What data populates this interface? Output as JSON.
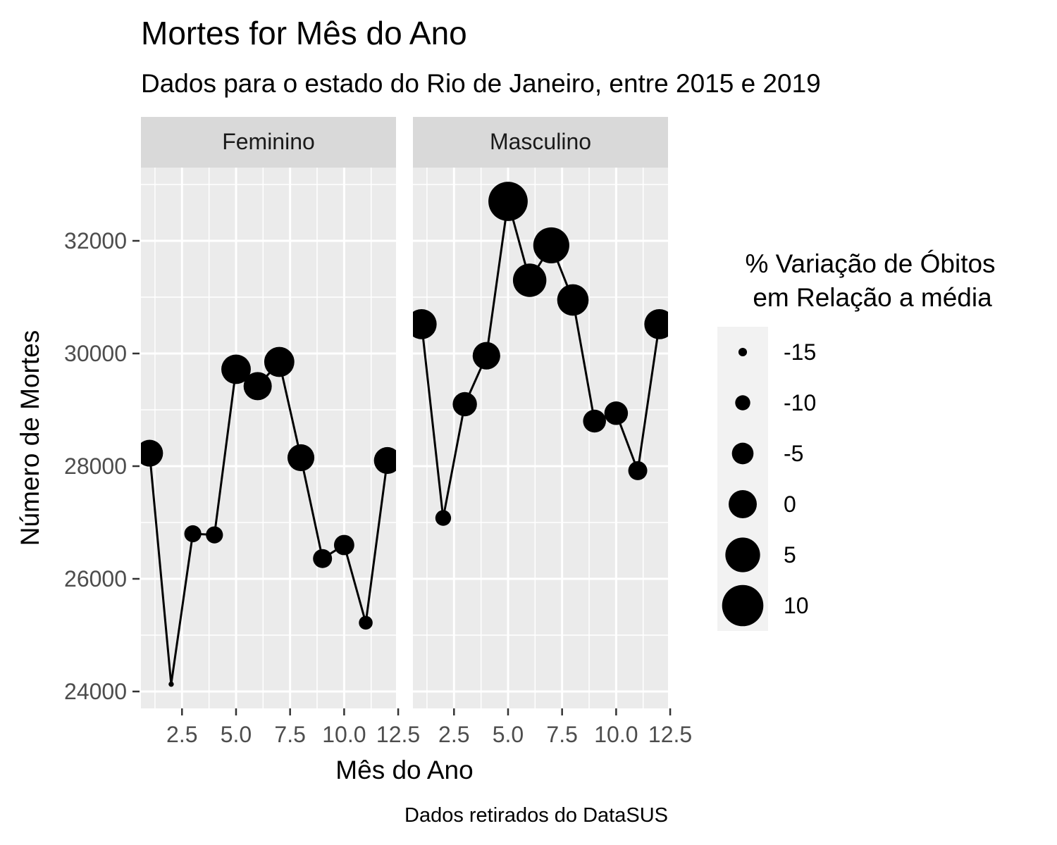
{
  "chart_data": {
    "type": "line",
    "title": "Mortes for Mês do Ano",
    "subtitle": "Dados para o estado do Rio de Janeiro, entre 2015 e 2019",
    "caption": "Dados retirados do DataSUS",
    "xlabel": "Mês do Ano",
    "ylabel": "Número de Mortes",
    "xlim": [
      0.6,
      12.4
    ],
    "ylim": [
      23700,
      33300
    ],
    "x_ticks": [
      2.5,
      5.0,
      7.5,
      10.0,
      12.5
    ],
    "x_tick_labels": [
      "2.5",
      "5.0",
      "7.5",
      "10.0",
      "12.5"
    ],
    "y_ticks": [
      24000,
      26000,
      28000,
      30000,
      32000
    ],
    "y_tick_labels": [
      "24000",
      "26000",
      "28000",
      "30000",
      "32000"
    ],
    "grid": true,
    "point_color": "#000000",
    "panel_background": "#ebebeb",
    "strip_background": "#d9d9d9",
    "facets": [
      {
        "label": "Feminino",
        "x": [
          1,
          2,
          3,
          4,
          5,
          6,
          7,
          8,
          9,
          10,
          11,
          12
        ],
        "y": [
          28230,
          24130,
          26800,
          26780,
          29720,
          29420,
          29850,
          28150,
          26360,
          26600,
          25220,
          28100
        ],
        "size": [
          -1,
          -17.5,
          -8.5,
          -8.5,
          1,
          0,
          1.5,
          -1,
          -7,
          -6,
          -11,
          -1
        ]
      },
      {
        "label": "Masculino",
        "x": [
          1,
          2,
          3,
          4,
          5,
          6,
          7,
          8,
          9,
          10,
          11,
          12
        ],
        "y": [
          30520,
          27080,
          29100,
          29960,
          32700,
          31300,
          31920,
          30950,
          28800,
          28940,
          27920,
          30520
        ],
        "size": [
          1.5,
          -9.5,
          -3,
          -0.5,
          8.5,
          4,
          6,
          2.5,
          -4,
          -3.5,
          -7,
          1.5
        ]
      }
    ],
    "legend": {
      "title_line1": "% Variação de Óbitos",
      "title_line2": "em Relação a média",
      "position": "right",
      "values": [
        -15,
        -10,
        -5,
        0,
        5,
        10
      ],
      "labels": [
        "-15",
        "-10",
        "-5",
        "0",
        "5",
        "10"
      ]
    }
  }
}
